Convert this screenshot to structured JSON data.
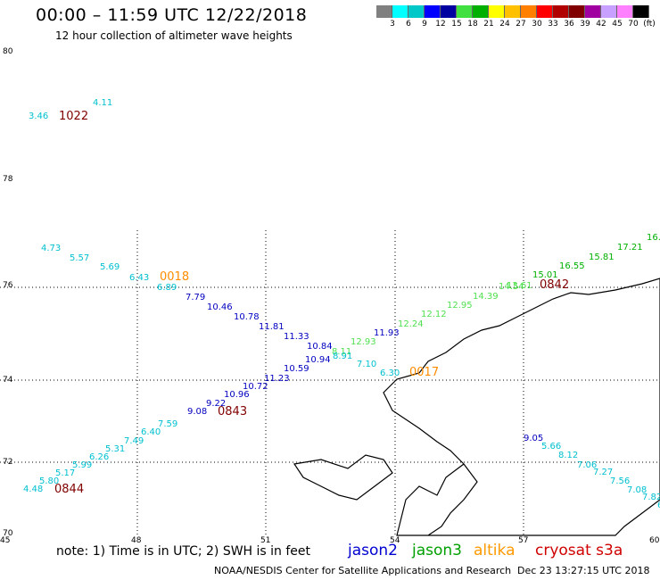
{
  "header": {
    "title": "00:00 – 11:59 UTC 12/22/2018",
    "subtitle": "12 hour collection of altimeter wave heights"
  },
  "color_scale": {
    "colors": [
      "#808080",
      "#00ffff",
      "#00c8c8",
      "#0000ff",
      "#0000a0",
      "#40e040",
      "#00b000",
      "#ffff00",
      "#ffc000",
      "#ff8000",
      "#ff0000",
      "#b00000",
      "#800000",
      "#a000a0",
      "#c8a0ff",
      "#ff80ff",
      "#000000"
    ],
    "labels": [
      "3",
      "6",
      "9",
      "12",
      "15",
      "18",
      "21",
      "24",
      "27",
      "30",
      "33",
      "36",
      "39",
      "42",
      "45",
      "70",
      "(ft)"
    ]
  },
  "map": {
    "x_ticks": [
      "45",
      "48",
      "51",
      "54",
      "57",
      "60"
    ],
    "y_ticks": [
      "80",
      "78",
      "76",
      "74",
      "72",
      "70"
    ],
    "grid": "dotted"
  },
  "tracks": {
    "jason2_color": "#0000c0",
    "jason3_color": "#00b000",
    "jason3_light_color": "#50e050",
    "altika_color": "#ff8c00",
    "s3a_color": "#800000",
    "cyan_color": "#00c0d0",
    "points": [
      {
        "v": "4.11",
        "c": "cyan"
      },
      {
        "v": "3.46",
        "c": "cyan"
      },
      {
        "v": "1022",
        "c": "s3a"
      },
      {
        "v": "4.73",
        "c": "cyan"
      },
      {
        "v": "5.57",
        "c": "cyan"
      },
      {
        "v": "5.69",
        "c": "cyan"
      },
      {
        "v": "6.43",
        "c": "cyan"
      },
      {
        "v": "0018",
        "c": "altika"
      },
      {
        "v": "6.89",
        "c": "cyan"
      },
      {
        "v": "7.79",
        "c": "j2"
      },
      {
        "v": "10.46",
        "c": "j2"
      },
      {
        "v": "10.78",
        "c": "j2"
      },
      {
        "v": "11.81",
        "c": "j2"
      },
      {
        "v": "11.33",
        "c": "j2"
      },
      {
        "v": "10.84",
        "c": "j2"
      },
      {
        "v": "10.94",
        "c": "j2"
      },
      {
        "v": "10.59",
        "c": "j2"
      },
      {
        "v": "11.23",
        "c": "j2"
      },
      {
        "v": "10.72",
        "c": "j2"
      },
      {
        "v": "10.96",
        "c": "j2"
      },
      {
        "v": "9.22",
        "c": "j2"
      },
      {
        "v": "9.08",
        "c": "j2"
      },
      {
        "v": "0843",
        "c": "s3a"
      },
      {
        "v": "7.59",
        "c": "cyan"
      },
      {
        "v": "6.40",
        "c": "cyan"
      },
      {
        "v": "7.49",
        "c": "cyan"
      },
      {
        "v": "5.31",
        "c": "cyan"
      },
      {
        "v": "6.26",
        "c": "cyan"
      },
      {
        "v": "5.99",
        "c": "cyan"
      },
      {
        "v": "5.17",
        "c": "cyan"
      },
      {
        "v": "5.80",
        "c": "cyan"
      },
      {
        "v": "4.48",
        "c": "cyan"
      },
      {
        "v": "0844",
        "c": "s3a"
      },
      {
        "v": "11.93",
        "c": "j2"
      },
      {
        "v": "12.93",
        "c": "j3l"
      },
      {
        "v": "8.11",
        "c": "j3l"
      },
      {
        "v": "8.91",
        "c": "cyan"
      },
      {
        "v": "7.10",
        "c": "cyan"
      },
      {
        "v": "6.30",
        "c": "cyan"
      },
      {
        "v": "0017",
        "c": "altika"
      },
      {
        "v": "12.24",
        "c": "j3l"
      },
      {
        "v": "12.12",
        "c": "j3l"
      },
      {
        "v": "12.95",
        "c": "j3l"
      },
      {
        "v": "14.39",
        "c": "j3l"
      },
      {
        "v": "14.54",
        "c": "j3l"
      },
      {
        "v": "13.61",
        "c": "j3l"
      },
      {
        "v": "0842",
        "c": "s3a"
      },
      {
        "v": "15.01",
        "c": "j3"
      },
      {
        "v": "16.55",
        "c": "j3"
      },
      {
        "v": "15.81",
        "c": "j3"
      },
      {
        "v": "17.21",
        "c": "j3"
      },
      {
        "v": "16.",
        "c": "j3"
      },
      {
        "v": "9.05",
        "c": "j2"
      },
      {
        "v": "5.66",
        "c": "cyan"
      },
      {
        "v": "8.12",
        "c": "cyan"
      },
      {
        "v": "7.06",
        "c": "cyan"
      },
      {
        "v": "7.27",
        "c": "cyan"
      },
      {
        "v": "7.56",
        "c": "cyan"
      },
      {
        "v": "7.08",
        "c": "cyan"
      },
      {
        "v": "7.82",
        "c": "cyan"
      },
      {
        "v": "6",
        "c": "cyan"
      }
    ]
  },
  "footer": {
    "note": "note: 1) Time is in UTC; 2) SWH is in feet",
    "legend": [
      {
        "label": "jason2",
        "color": "#0000d0"
      },
      {
        "label": "jason3",
        "color": "#00a000"
      },
      {
        "label": "altika",
        "color": "#ff9900"
      },
      {
        "label": "cryosat s3a",
        "color": "#d00000"
      }
    ],
    "credit": "NOAA/NESDIS Center for Satellite Applications and Research",
    "stamp": "Dec 23 13:27:15 UTC 2018"
  }
}
